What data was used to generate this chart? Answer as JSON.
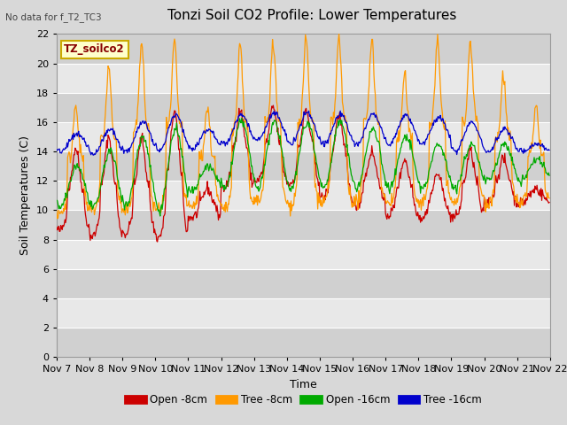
{
  "title": "Tonzi Soil CO2 Profile: Lower Temperatures",
  "subtitle": "No data for f_T2_TC3",
  "watermark": "TZ_soilco2",
  "xlabel": "Time",
  "ylabel": "Soil Temperatures (C)",
  "ylim": [
    0,
    22
  ],
  "yticks": [
    0,
    2,
    4,
    6,
    8,
    10,
    12,
    14,
    16,
    18,
    20,
    22
  ],
  "xtick_labels": [
    "Nov 7",
    "Nov 8",
    "Nov 9",
    "Nov 10",
    "Nov 11",
    "Nov 12",
    "Nov 13",
    "Nov 14",
    "Nov 15",
    "Nov 16",
    "Nov 17",
    "Nov 18",
    "Nov 19",
    "Nov 20",
    "Nov 21",
    "Nov 22"
  ],
  "legend_labels": [
    "Open -8cm",
    "Tree -8cm",
    "Open -16cm",
    "Tree -16cm"
  ],
  "line_colors": [
    "#cc0000",
    "#ff9900",
    "#00aa00",
    "#0000cc"
  ],
  "bg_color": "#d8d8d8",
  "plot_bg_light": "#e8e8e8",
  "plot_bg_dark": "#d0d0d0",
  "grid_color": "#ffffff",
  "title_fontsize": 11,
  "axis_fontsize": 9,
  "tick_fontsize": 8,
  "open8_mins": [
    8.6,
    8.2,
    8.4,
    8.1,
    9.5,
    11.5,
    12.0,
    11.8,
    10.8,
    10.3,
    9.7,
    9.5,
    9.5,
    10.5,
    10.5
  ],
  "open8_maxs": [
    14.2,
    15.0,
    14.9,
    16.8,
    11.5,
    16.8,
    17.0,
    16.8,
    16.5,
    14.0,
    13.5,
    12.5,
    14.0,
    13.5,
    11.5
  ],
  "tree8_mins": [
    9.8,
    10.0,
    9.8,
    10.0,
    10.2,
    10.0,
    10.5,
    10.3,
    10.5,
    10.5,
    10.5,
    10.5,
    10.5,
    10.5,
    10.5
  ],
  "tree8_maxs": [
    17.3,
    19.7,
    21.3,
    21.4,
    17.0,
    21.3,
    21.4,
    21.6,
    21.6,
    21.6,
    19.2,
    21.4,
    21.5,
    19.2,
    17.0
  ],
  "open16_mins": [
    10.2,
    10.1,
    10.3,
    10.0,
    11.3,
    11.5,
    11.5,
    11.5,
    11.5,
    11.5,
    11.5,
    11.5,
    11.5,
    12.0,
    12.0
  ],
  "open16_maxs": [
    13.0,
    14.0,
    15.0,
    15.5,
    13.0,
    16.1,
    15.9,
    16.0,
    16.0,
    15.5,
    15.0,
    14.5,
    14.5,
    14.5,
    13.5
  ],
  "tree16_mins": [
    14.0,
    13.8,
    14.0,
    14.0,
    14.2,
    14.5,
    14.8,
    14.5,
    14.5,
    14.5,
    14.5,
    14.5,
    14.0,
    14.0,
    14.0
  ],
  "tree16_maxs": [
    15.2,
    15.5,
    16.0,
    16.5,
    15.5,
    16.5,
    16.6,
    16.6,
    16.5,
    16.5,
    16.5,
    16.3,
    16.0,
    15.5,
    14.5
  ]
}
